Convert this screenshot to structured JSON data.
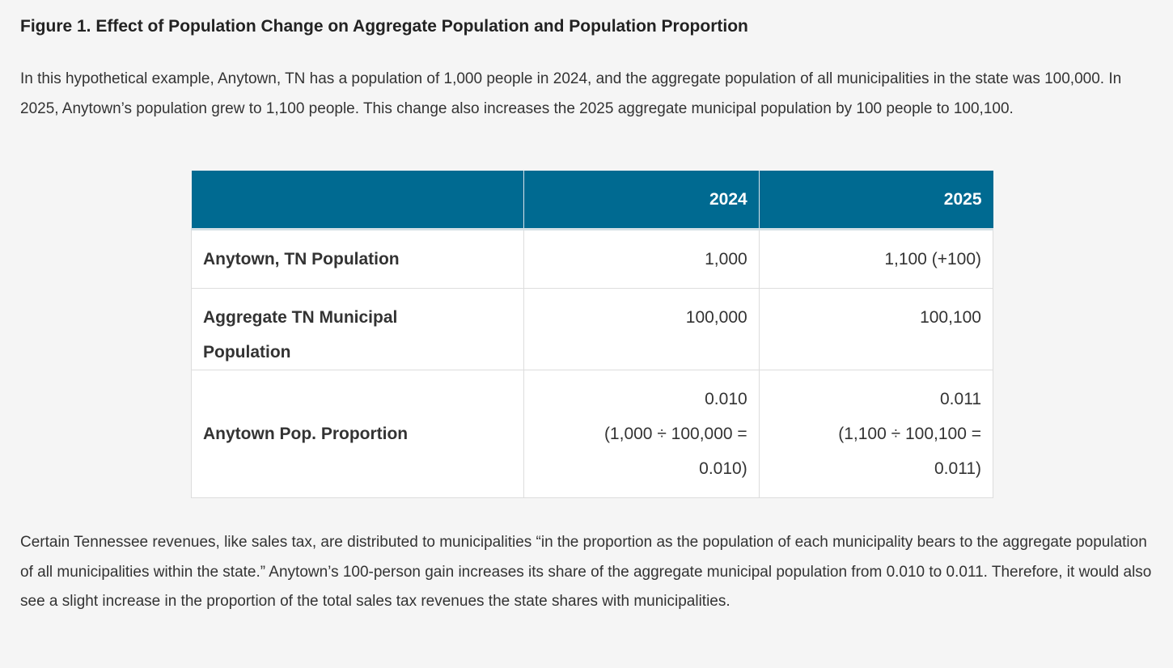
{
  "figure_title": "Figure 1. Effect of Population Change on Aggregate Population and Population Proportion",
  "intro": "In this hypothetical example, Anytown, TN has a population of 1,000 people in 2024, and the aggregate population of all municipalities in the state was 100,000. In 2025, Anytown’s population grew to 1,100 people. This change also increases the 2025 aggregate municipal population by 100 people to 100,100.",
  "table": {
    "header_color": "#006a91",
    "columns": [
      "",
      "2024",
      "2025"
    ],
    "rows": [
      {
        "label": "Anytown, TN Population",
        "v2024": [
          "1,000"
        ],
        "v2025": [
          "1,100 (+100)"
        ]
      },
      {
        "label": "Aggregate TN Municipal Population",
        "v2024": [
          "100,000"
        ],
        "v2025": [
          "100,100"
        ]
      },
      {
        "label": "Anytown Pop. Proportion",
        "v2024": [
          "0.010",
          "(1,000 ÷ 100,000 =",
          "0.010)"
        ],
        "v2025": [
          "0.011",
          "(1,100 ÷ 100,100 =",
          "0.011)"
        ]
      }
    ]
  },
  "conclusion": "Certain Tennessee revenues, like sales tax, are distributed to municipalities “in the proportion as the population of each municipality bears to the aggregate population of all municipalities within the state.” Anytown’s 100-person gain increases its share of the aggregate municipal population from 0.010 to 0.011. Therefore, it would also see a slight increase in the proportion of the total sales tax revenues the state shares with municipalities."
}
